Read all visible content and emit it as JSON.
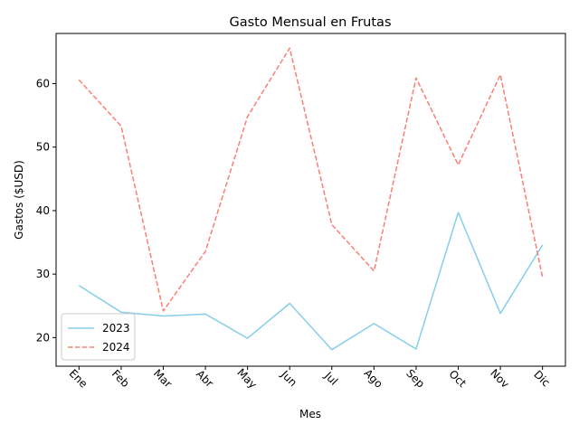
{
  "chart_data": {
    "type": "line",
    "title": "Gasto Mensual en Frutas",
    "xlabel": "Mes",
    "ylabel": "Gastos ($USD)",
    "categories": [
      "Ene",
      "Feb",
      "Mar",
      "Abr",
      "May",
      "Jun",
      "Jul",
      "Ago",
      "Sep",
      "Oct",
      "Nov",
      "Dic"
    ],
    "y_ticks": [
      20,
      30,
      40,
      50,
      60
    ],
    "ylim": [
      15.5,
      67.9
    ],
    "grid": false,
    "legend_position": "lower-left",
    "series": [
      {
        "name": "2023",
        "color": "#87ceeb",
        "style": "solid",
        "values": [
          28.2,
          24.0,
          23.4,
          23.7,
          19.9,
          25.4,
          18.1,
          22.2,
          18.2,
          39.7,
          23.8,
          34.6
        ]
      },
      {
        "name": "2024",
        "color": "#fa8072",
        "style": "dashed",
        "values": [
          60.6,
          53.3,
          24.2,
          33.6,
          54.8,
          65.6,
          37.8,
          30.5,
          60.9,
          47.2,
          61.4,
          29.5
        ]
      }
    ]
  }
}
